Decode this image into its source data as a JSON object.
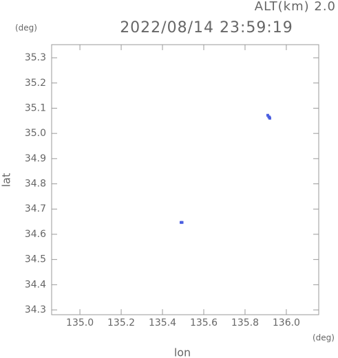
{
  "chart_data": {
    "type": "scatter",
    "title": "2022/08/14 23:59:19",
    "subtitle": "ALT(km) 2.0",
    "x_label": "lon",
    "y_label": "lat",
    "x_unit": "(deg)",
    "y_unit": "(deg)",
    "xlim": [
      134.863,
      136.157
    ],
    "ylim": [
      34.281,
      35.352
    ],
    "xticks": [
      {
        "value": 135,
        "label": "135.0"
      },
      135.2,
      135.4,
      135.6,
      135.8,
      {
        "value": 136,
        "label": "136.0"
      }
    ],
    "yticks": [
      34.3,
      34.4,
      34.5,
      34.6,
      34.7,
      34.8,
      34.9,
      {
        "value": 35,
        "label": "35.0"
      },
      35.1,
      35.2,
      35.3
    ],
    "grid": false,
    "series": [
      {
        "color": "#4a5ee0",
        "x": [
          135.91,
          135.915,
          135.92,
          135.918,
          135.49,
          135.495
        ],
        "values": [
          35.072,
          35.066,
          35.06,
          35.064,
          34.647,
          34.647
        ]
      }
    ]
  }
}
